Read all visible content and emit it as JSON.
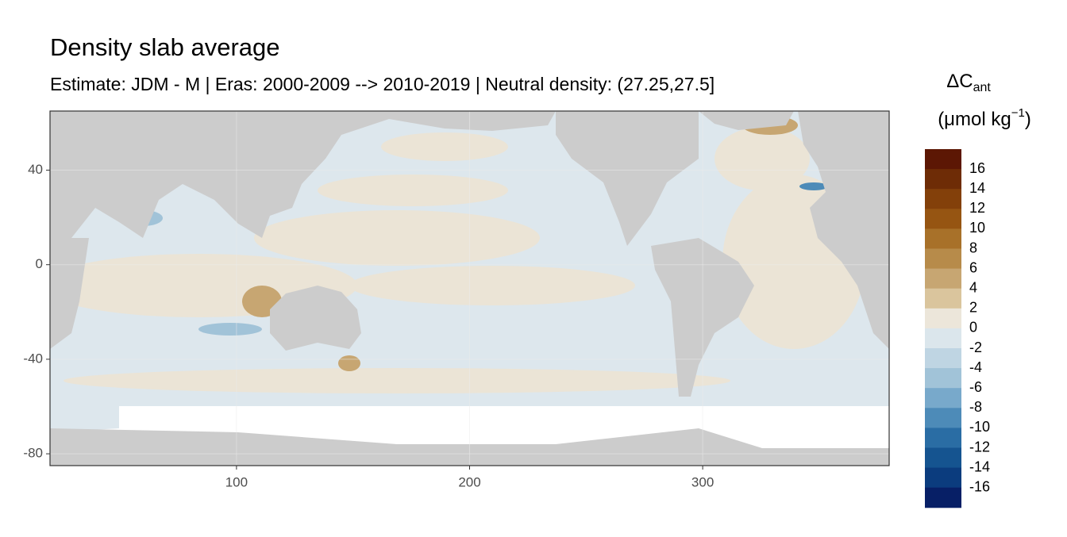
{
  "chart_data": {
    "type": "map",
    "title": "Density slab average",
    "subtitle": "Estimate: JDM - M | Eras: 2000-2009 --> 2010-2019 | Neutral density: (27.25,27.5]",
    "xlim": [
      20,
      380
    ],
    "ylim": [
      -85,
      65
    ],
    "xticks": [
      100,
      200,
      300
    ],
    "yticks": [
      40,
      0,
      -40,
      -80
    ],
    "grid": true,
    "legend": {
      "title_main": "ΔC",
      "title_sub": "ant",
      "unit_open": "(μmol kg",
      "unit_sup": "−1",
      "unit_close": ")",
      "breaks": [
        16,
        14,
        12,
        10,
        8,
        6,
        4,
        2,
        0,
        -2,
        -4,
        -6,
        -8,
        -10,
        -12,
        -14,
        -16
      ],
      "colors": [
        "#5c1704",
        "#6e2c06",
        "#83400a",
        "#965512",
        "#a87129",
        "#b78b4a",
        "#c7a672",
        "#dac59d",
        "#ece6da",
        "#dbe6ec",
        "#bfd5e3",
        "#a1c3d8",
        "#78a9cb",
        "#4d8bb8",
        "#2a6da4",
        "#155490",
        "#0b3c7e",
        "#071f66"
      ]
    }
  }
}
